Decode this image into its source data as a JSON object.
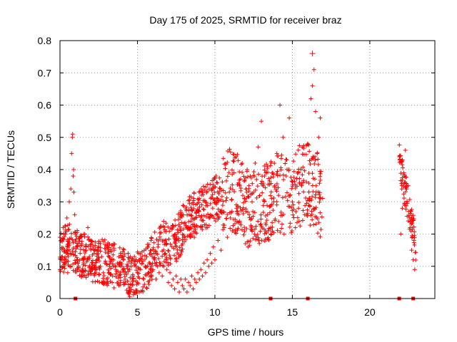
{
  "chart_data": {
    "type": "scatter",
    "title": "Day 175 of 2025, SRMTID for receiver braz",
    "xlabel": "GPS time / hours",
    "ylabel": "SRMTID / TECUs",
    "xlim": [
      0,
      24.2
    ],
    "ylim": [
      0,
      0.8
    ],
    "grid": true,
    "x_ticks": [
      0,
      5,
      10,
      15,
      20
    ],
    "y_ticks": [
      0,
      0.1,
      0.2,
      0.3,
      0.4,
      0.5,
      0.6,
      0.7,
      0.8
    ],
    "x_tick_labels": [
      "0",
      "5",
      "10",
      "15",
      "20"
    ],
    "y_tick_labels": [
      "0",
      "0.1",
      "0.2",
      "0.3",
      "0.4",
      "0.5",
      "0.6",
      "0.7",
      "0.8"
    ],
    "marker": "+",
    "color": "#ff0000",
    "series": [
      {
        "name": "SRMTID",
        "points": [
          [
            0.0,
            0.09
          ],
          [
            0.1,
            0.18
          ],
          [
            0.15,
            0.13
          ],
          [
            0.2,
            0.22
          ],
          [
            0.25,
            0.1
          ],
          [
            0.3,
            0.15
          ],
          [
            0.35,
            0.2
          ],
          [
            0.4,
            0.12
          ],
          [
            0.45,
            0.25
          ],
          [
            0.5,
            0.08
          ],
          [
            0.55,
            0.17
          ],
          [
            0.6,
            0.3
          ],
          [
            0.65,
            0.14
          ],
          [
            0.7,
            0.34
          ],
          [
            0.75,
            0.45
          ],
          [
            0.8,
            0.5
          ],
          [
            0.82,
            0.51
          ],
          [
            0.85,
            0.38
          ],
          [
            0.88,
            0.4
          ],
          [
            0.9,
            0.33
          ],
          [
            0.95,
            0.26
          ],
          [
            1.0,
            0.2
          ],
          [
            1.05,
            0.16
          ],
          [
            1.1,
            0.12
          ],
          [
            1.2,
            0.1
          ],
          [
            1.3,
            0.14
          ],
          [
            1.4,
            0.17
          ],
          [
            1.5,
            0.12
          ],
          [
            1.6,
            0.2
          ],
          [
            1.7,
            0.15
          ],
          [
            1.8,
            0.22
          ],
          [
            1.9,
            0.13
          ],
          [
            2.0,
            0.18
          ],
          [
            2.1,
            0.11
          ],
          [
            2.2,
            0.14
          ],
          [
            2.3,
            0.09
          ],
          [
            2.4,
            0.12
          ],
          [
            2.5,
            0.16
          ],
          [
            2.6,
            0.1
          ],
          [
            2.7,
            0.13
          ],
          [
            2.8,
            0.08
          ],
          [
            2.9,
            0.11
          ],
          [
            3.0,
            0.06
          ],
          [
            3.1,
            0.14
          ],
          [
            3.2,
            0.1
          ],
          [
            3.3,
            0.12
          ],
          [
            3.4,
            0.07
          ],
          [
            3.5,
            0.15
          ],
          [
            3.6,
            0.09
          ],
          [
            3.7,
            0.11
          ],
          [
            3.8,
            0.13
          ],
          [
            3.9,
            0.08
          ],
          [
            4.0,
            0.1
          ],
          [
            4.1,
            0.12
          ],
          [
            4.2,
            0.06
          ],
          [
            4.3,
            0.1
          ],
          [
            4.4,
            0.14
          ],
          [
            4.5,
            0.09
          ],
          [
            4.6,
            0.11
          ],
          [
            4.7,
            0.07
          ],
          [
            4.8,
            0.13
          ],
          [
            4.9,
            0.1
          ],
          [
            5.0,
            0.08
          ],
          [
            5.1,
            0.12
          ],
          [
            5.2,
            0.09
          ],
          [
            5.3,
            0.11
          ],
          [
            5.4,
            0.06
          ],
          [
            5.5,
            0.1
          ],
          [
            5.6,
            0.13
          ],
          [
            5.7,
            0.08
          ],
          [
            5.8,
            0.11
          ],
          [
            5.9,
            0.07
          ],
          [
            6.0,
            0.09
          ],
          [
            6.1,
            0.12
          ],
          [
            6.2,
            0.06
          ],
          [
            6.3,
            0.1
          ],
          [
            6.4,
            0.08
          ],
          [
            6.5,
            0.11
          ],
          [
            6.6,
            0.07
          ],
          [
            6.7,
            0.1
          ],
          [
            6.8,
            0.14
          ],
          [
            6.9,
            0.09
          ],
          [
            7.0,
            0.05
          ],
          [
            7.1,
            0.08
          ],
          [
            7.2,
            0.04
          ],
          [
            7.3,
            0.06
          ],
          [
            7.4,
            0.03
          ],
          [
            7.5,
            0.07
          ],
          [
            7.6,
            0.05
          ],
          [
            7.7,
            0.02
          ],
          [
            7.8,
            0.06
          ],
          [
            7.9,
            0.04
          ],
          [
            8.0,
            0.03
          ],
          [
            8.1,
            0.06
          ],
          [
            8.2,
            0.02
          ],
          [
            8.3,
            0.05
          ],
          [
            8.4,
            0.04
          ],
          [
            8.5,
            0.07
          ],
          [
            8.6,
            0.03
          ],
          [
            8.7,
            0.06
          ],
          [
            8.8,
            0.05
          ],
          [
            8.9,
            0.08
          ],
          [
            9.0,
            0.06
          ],
          [
            9.1,
            0.09
          ],
          [
            9.2,
            0.07
          ],
          [
            9.3,
            0.11
          ],
          [
            9.4,
            0.08
          ],
          [
            9.5,
            0.12
          ],
          [
            9.6,
            0.1
          ],
          [
            9.7,
            0.14
          ],
          [
            9.8,
            0.11
          ],
          [
            9.9,
            0.16
          ],
          [
            10.0,
            0.12
          ],
          [
            10.2,
            0.18
          ],
          [
            10.4,
            0.15
          ],
          [
            10.6,
            0.22
          ],
          [
            10.8,
            0.19
          ],
          [
            11.0,
            0.25
          ],
          [
            11.2,
            0.21
          ],
          [
            11.4,
            0.28
          ],
          [
            11.6,
            0.24
          ],
          [
            11.8,
            0.32
          ],
          [
            12.0,
            0.27
          ],
          [
            12.2,
            0.35
          ],
          [
            12.4,
            0.3
          ],
          [
            12.6,
            0.42
          ],
          [
            12.8,
            0.47
          ],
          [
            13.0,
            0.55
          ],
          [
            13.2,
            0.38
          ],
          [
            13.4,
            0.26
          ],
          [
            13.6,
            0.22
          ],
          [
            13.8,
            0.3
          ],
          [
            14.0,
            0.45
          ],
          [
            14.2,
            0.6
          ],
          [
            14.4,
            0.5
          ],
          [
            14.6,
            0.38
          ],
          [
            14.8,
            0.56
          ],
          [
            15.0,
            0.3
          ],
          [
            15.2,
            0.22
          ],
          [
            15.4,
            0.28
          ],
          [
            15.6,
            0.35
          ],
          [
            15.8,
            0.26
          ],
          [
            16.0,
            0.48
          ],
          [
            16.2,
            0.62
          ],
          [
            16.3,
            0.66
          ],
          [
            16.4,
            0.71
          ],
          [
            16.5,
            0.58
          ],
          [
            16.6,
            0.45
          ],
          [
            16.7,
            0.5
          ],
          [
            16.8,
            0.56
          ],
          [
            22.0,
            0.2
          ],
          [
            22.1,
            0.28
          ],
          [
            22.2,
            0.39
          ],
          [
            22.3,
            0.46
          ],
          [
            22.4,
            0.35
          ],
          [
            22.5,
            0.27
          ],
          [
            22.6,
            0.22
          ],
          [
            22.7,
            0.15
          ],
          [
            22.8,
            0.12
          ],
          [
            22.9,
            0.09
          ]
        ]
      }
    ],
    "dense_band_x": [
      0.0,
      17.0
    ],
    "dense_band_y_center": [
      0.13,
      0.17,
      0.15,
      0.13,
      0.12,
      0.12,
      0.11,
      0.1,
      0.09,
      0.06,
      0.08,
      0.1,
      0.15,
      0.17,
      0.16,
      0.2,
      0.25,
      0.26,
      0.28,
      0.3,
      0.32,
      0.34,
      0.33,
      0.3,
      0.27,
      0.28,
      0.3,
      0.32,
      0.32,
      0.3,
      0.35,
      0.36,
      0.34,
      0.3
    ],
    "spread": 0.07,
    "highlight": [
      16.3,
      0.76
    ],
    "gap_markers_x": [
      1.0,
      13.6,
      16.0,
      21.9,
      22.8
    ]
  }
}
